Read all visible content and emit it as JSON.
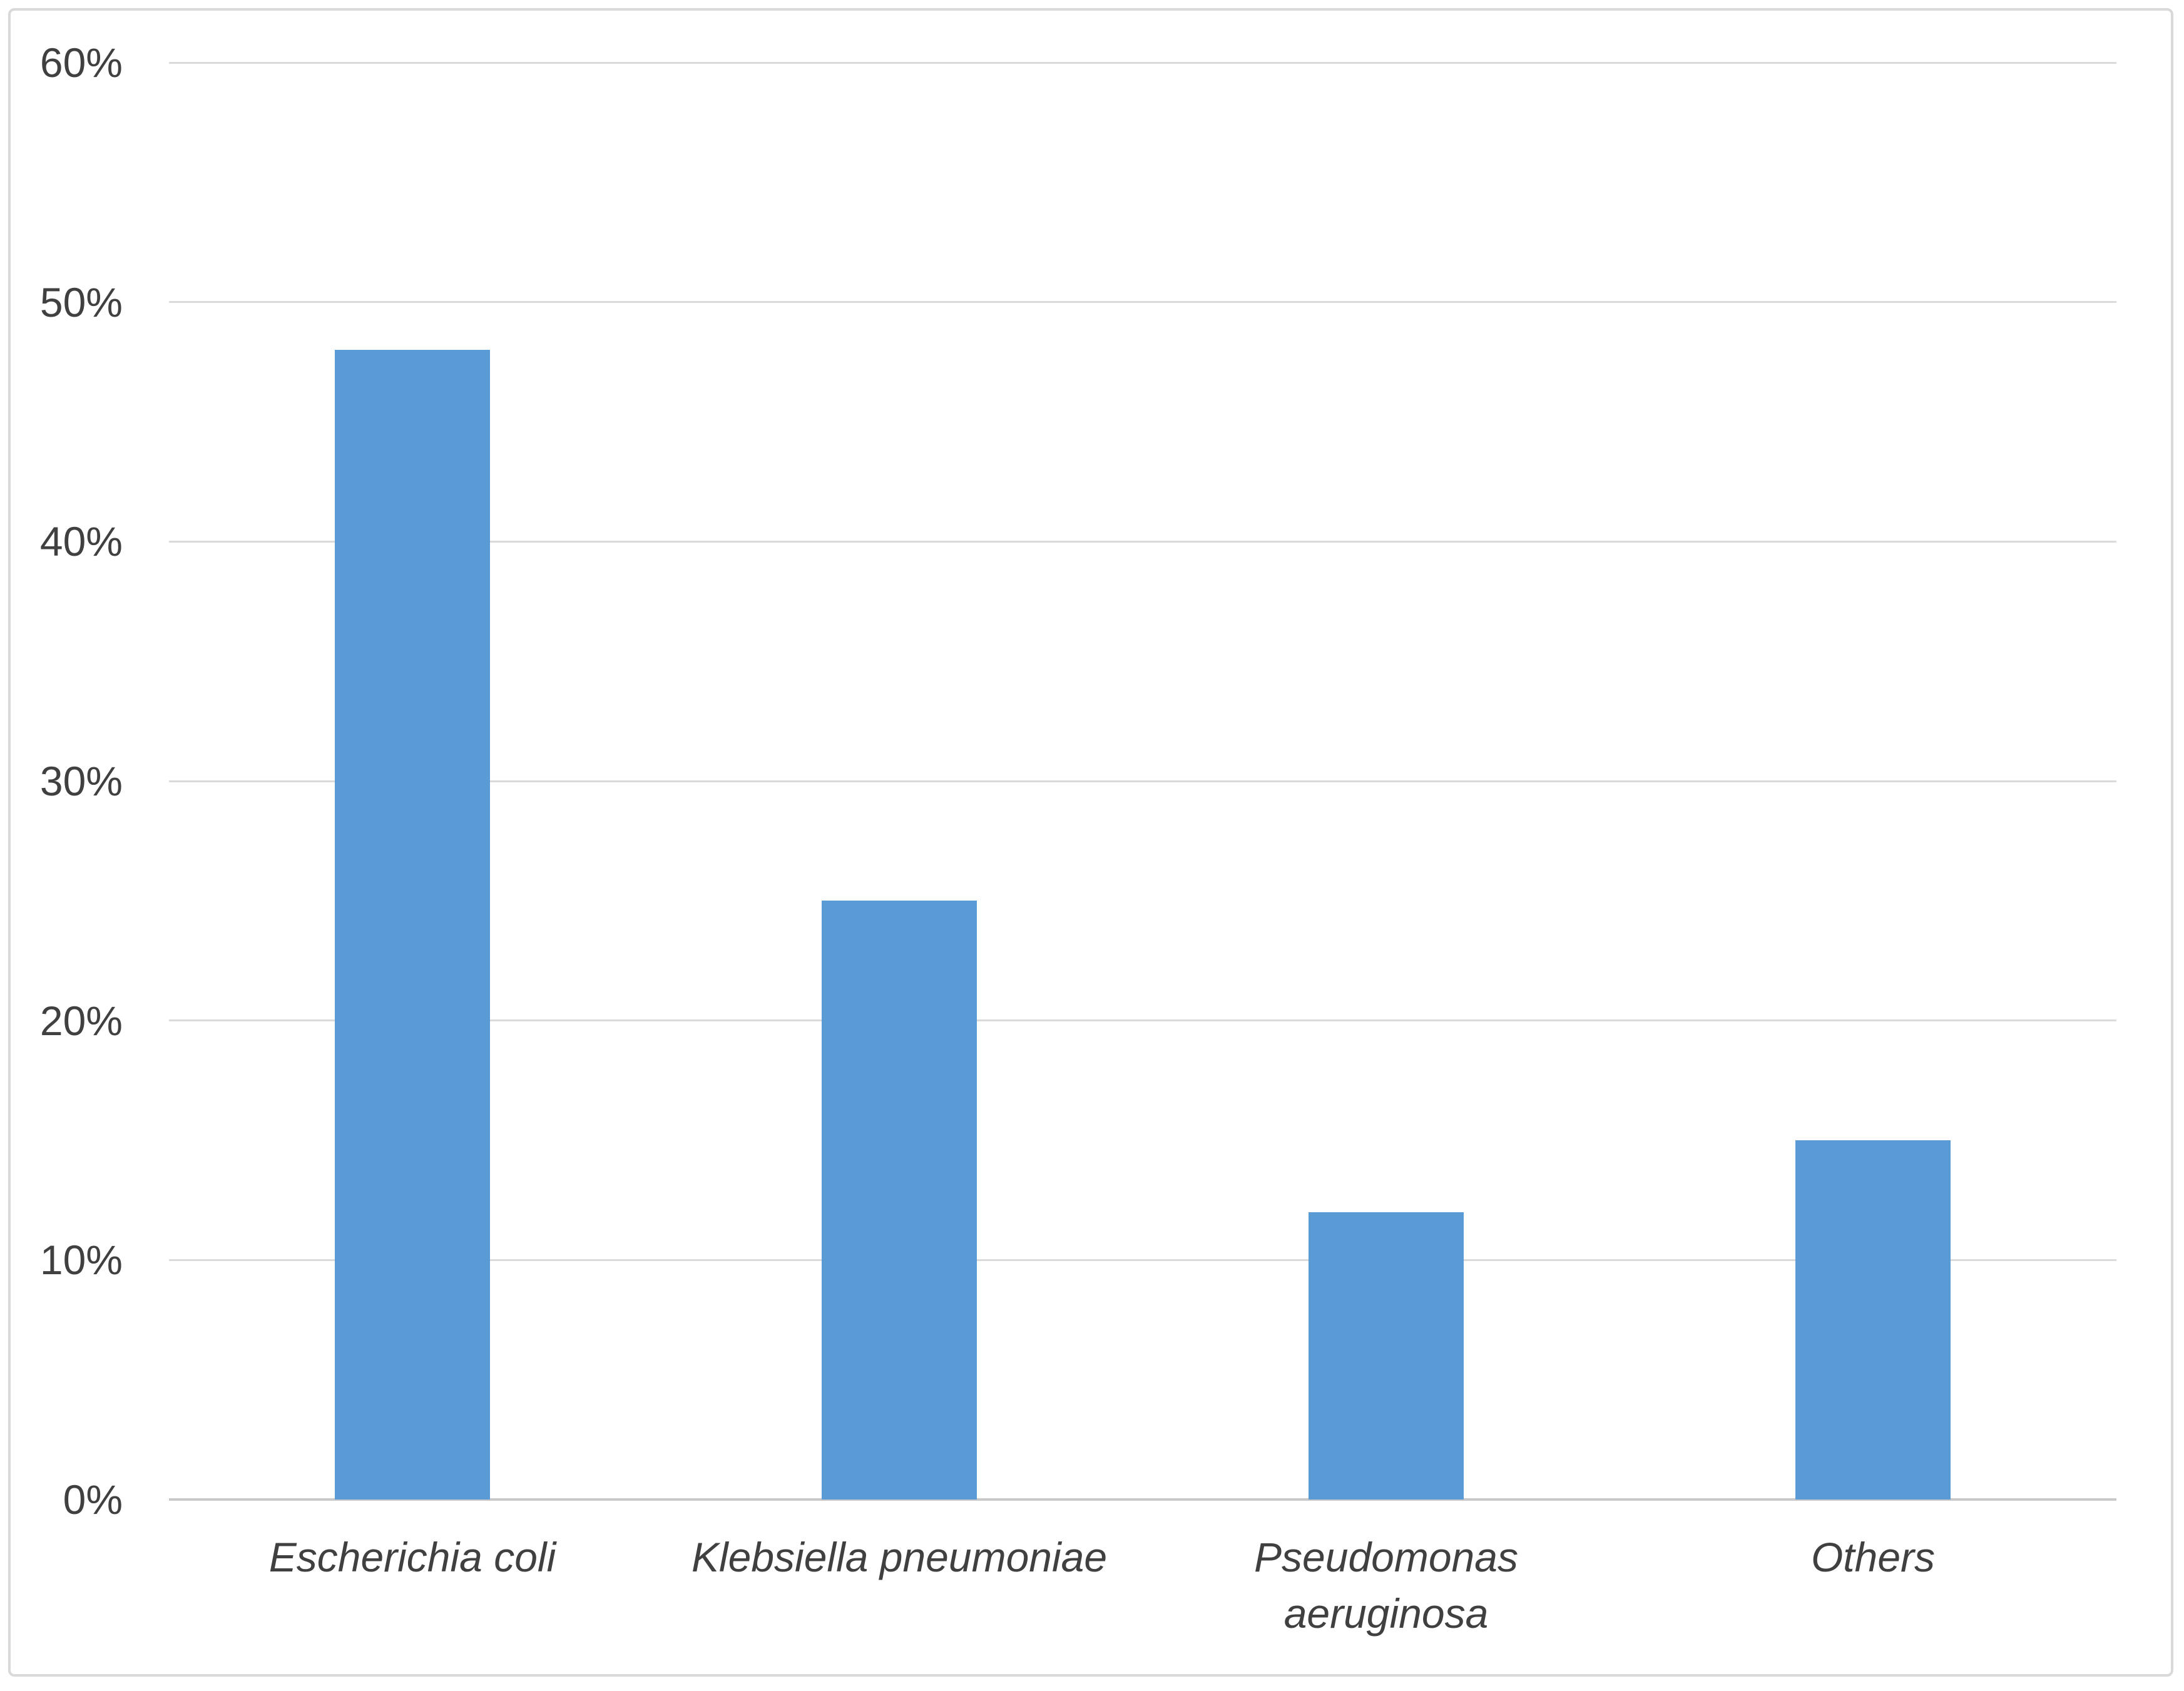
{
  "chart_data": {
    "type": "bar",
    "categories": [
      "Escherichia coli",
      "Klebsiella pneumoniae",
      "Pseudomonas aeruginosa",
      "Others"
    ],
    "category_lines": [
      [
        "Escherichia coli"
      ],
      [
        "Klebsiella pneumoniae"
      ],
      [
        "Pseudomonas",
        "aeruginosa"
      ],
      [
        "Others"
      ]
    ],
    "values": [
      48,
      25,
      12,
      15
    ],
    "value_unit": "%",
    "ylim": [
      0,
      60
    ],
    "ytick_step": 10,
    "ytick_labels": [
      "0%",
      "10%",
      "20%",
      "30%",
      "40%",
      "50%",
      "60%"
    ],
    "grid": true,
    "legend": false,
    "category_label_style": "italic",
    "colors": {
      "bar": "#5B9BD5",
      "gridline": "#DADADA",
      "axis_line": "#C9C9C9",
      "tick_label": "#404040",
      "category_label": "#404040",
      "frame_border": "#D9D9D9",
      "background": "#FFFFFF"
    }
  }
}
